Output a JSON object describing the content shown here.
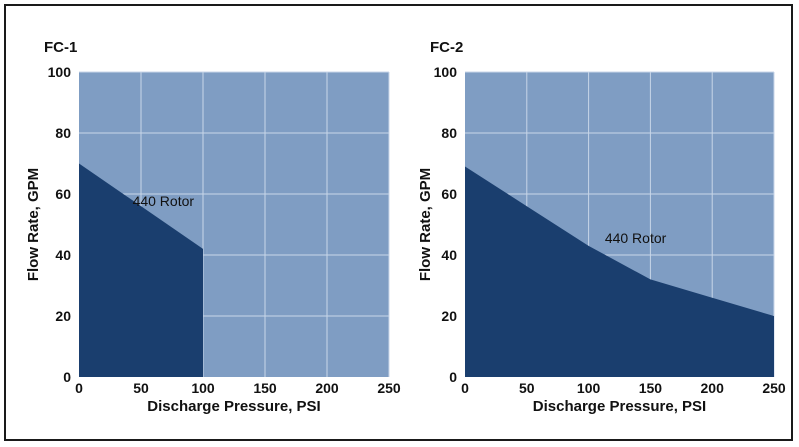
{
  "colors": {
    "plot_background": "#7f9dc3",
    "fill": "#1a3e6e",
    "grid": "#c8d6e8"
  },
  "chart_data": [
    {
      "type": "area",
      "title": "FC-1",
      "xlabel": "Discharge Pressure, PSI",
      "ylabel": "Flow Rate, GPM",
      "xlim": [
        0,
        250
      ],
      "ylim": [
        0,
        100
      ],
      "xticks": [
        0,
        50,
        100,
        150,
        200,
        250
      ],
      "yticks": [
        0,
        20,
        40,
        60,
        80,
        100
      ],
      "grid": true,
      "series": [
        {
          "name": "440 Rotor",
          "x": [
            0,
            100,
            100
          ],
          "y": [
            70,
            42,
            0
          ]
        }
      ],
      "annotations": [
        {
          "text": "440 Rotor",
          "x": 68,
          "y": 56
        }
      ]
    },
    {
      "type": "area",
      "title": "FC-2",
      "xlabel": "Discharge Pressure, PSI",
      "ylabel": "Flow Rate, GPM",
      "xlim": [
        0,
        250
      ],
      "ylim": [
        0,
        100
      ],
      "xticks": [
        0,
        50,
        100,
        150,
        200,
        250
      ],
      "yticks": [
        0,
        20,
        40,
        60,
        80,
        100
      ],
      "grid": true,
      "series": [
        {
          "name": "440 Rotor",
          "x": [
            0,
            50,
            100,
            150,
            200,
            250
          ],
          "y": [
            69,
            56,
            43,
            32,
            26,
            20
          ]
        }
      ],
      "annotations": [
        {
          "text": "440 Rotor",
          "x": 138,
          "y": 44
        }
      ]
    }
  ]
}
